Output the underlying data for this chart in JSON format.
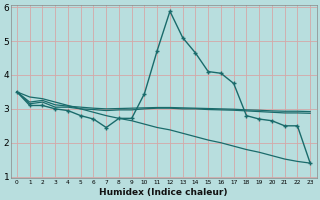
{
  "xlabel": "Humidex (Indice chaleur)",
  "background_color": "#b8dede",
  "grid_color": "#d4a8a8",
  "line_color": "#1a6b6b",
  "x_values": [
    0,
    1,
    2,
    3,
    4,
    5,
    6,
    7,
    8,
    9,
    10,
    11,
    12,
    13,
    14,
    15,
    16,
    17,
    18,
    19,
    20,
    21,
    22,
    23
  ],
  "series1": [
    3.5,
    3.1,
    3.1,
    3.0,
    2.95,
    2.8,
    2.7,
    2.45,
    2.72,
    2.72,
    3.45,
    4.72,
    5.88,
    5.1,
    4.65,
    4.1,
    4.05,
    3.75,
    2.8,
    2.7,
    2.65,
    2.5,
    2.5,
    1.4
  ],
  "series2": [
    3.5,
    3.15,
    3.2,
    3.05,
    3.05,
    3.0,
    2.98,
    2.95,
    2.97,
    2.97,
    3.0,
    3.02,
    3.02,
    3.0,
    3.0,
    2.98,
    2.97,
    2.96,
    2.94,
    2.92,
    2.9,
    2.88,
    2.88,
    2.87
  ],
  "series3": [
    3.5,
    3.2,
    3.25,
    3.12,
    3.08,
    3.05,
    3.02,
    3.0,
    3.01,
    3.02,
    3.03,
    3.04,
    3.04,
    3.03,
    3.02,
    3.01,
    3.0,
    2.99,
    2.97,
    2.96,
    2.94,
    2.93,
    2.93,
    2.92
  ],
  "series4": [
    3.5,
    3.35,
    3.3,
    3.2,
    3.1,
    3.0,
    2.9,
    2.8,
    2.72,
    2.65,
    2.55,
    2.45,
    2.38,
    2.28,
    2.18,
    2.08,
    2.0,
    1.9,
    1.8,
    1.72,
    1.62,
    1.52,
    1.45,
    1.4
  ],
  "ylim": [
    1,
    6
  ],
  "xlim": [
    -0.5,
    23.5
  ],
  "yticks": [
    1,
    2,
    3,
    4,
    5,
    6
  ],
  "xticks": [
    0,
    1,
    2,
    3,
    4,
    5,
    6,
    7,
    8,
    9,
    10,
    11,
    12,
    13,
    14,
    15,
    16,
    17,
    18,
    19,
    20,
    21,
    22,
    23
  ]
}
